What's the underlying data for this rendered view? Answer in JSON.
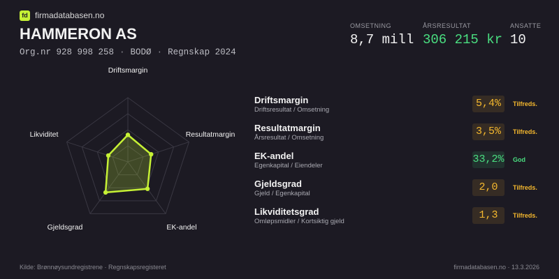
{
  "brand": {
    "icon": "fd",
    "name": "firmadatabasen.no"
  },
  "company": "HAMMERON AS",
  "meta": [
    "Org.nr 928 998 258",
    "BODØ",
    "Regnskap 2024"
  ],
  "meta_separator": "·",
  "kpis": [
    {
      "label": "OMSETNING",
      "value": "8,7 mill",
      "color": "#f2f2f2"
    },
    {
      "label": "ÅRSRESULTAT",
      "value": "306 215 kr",
      "color": "#4ade80"
    },
    {
      "label": "ANSATTE",
      "value": "10",
      "color": "#f2f2f2"
    }
  ],
  "chart_data": {
    "type": "radar",
    "categories": [
      "Driftsmargin",
      "Resultatmargin",
      "EK-andel",
      "Gjeldsgrad",
      "Likviditet"
    ],
    "values": [
      0.42,
      0.38,
      0.52,
      0.59,
      0.32
    ],
    "rlim": [
      0,
      1
    ],
    "rticks": [
      0.25,
      0.5,
      0.75,
      1
    ],
    "grid": true,
    "color": "#c6f135"
  },
  "metrics": [
    {
      "name": "Driftsmargin",
      "formula": "Driftsresultat / Omsetning",
      "value": "5,4%",
      "rating": "Tilfreds.",
      "color": "#f5b82e"
    },
    {
      "name": "Resultatmargin",
      "formula": "Årsresultat / Omsetning",
      "value": "3,5%",
      "rating": "Tilfreds.",
      "color": "#f5b82e"
    },
    {
      "name": "EK-andel",
      "formula": "Egenkapital / Eiendeler",
      "value": "33,2%",
      "rating": "God",
      "color": "#4ade80"
    },
    {
      "name": "Gjeldsgrad",
      "formula": "Gjeld / Egenkapital",
      "value": "2,0",
      "rating": "Tilfreds.",
      "color": "#f5b82e"
    },
    {
      "name": "Likviditetsgrad",
      "formula": "Omløpsmidler / Kortsiktig gjeld",
      "value": "1,3",
      "rating": "Tilfreds.",
      "color": "#f5b82e"
    }
  ],
  "footer": {
    "source": "Kilde: Brønnøysundregistrene · Regnskapsregisteret",
    "site": "firmadatabasen.no · 13.3.2026"
  }
}
